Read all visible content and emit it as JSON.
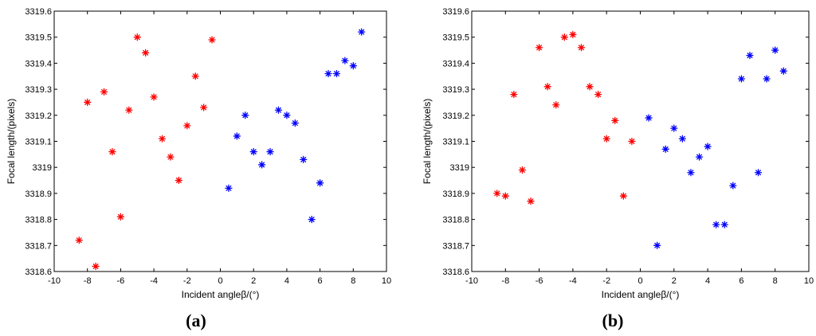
{
  "chart_data": [
    {
      "type": "scatter",
      "panel_label": "(a)",
      "panel_paren_open": "(",
      "panel_letter": "a",
      "panel_paren_close": ")",
      "xlabel": "Incident angleβ/(°)",
      "ylabel": "Focal length/(pixels)",
      "xlim": [
        -10,
        10
      ],
      "ylim": [
        3318.6,
        3319.6
      ],
      "xticks": [
        "-10",
        "-8",
        "-6",
        "-4",
        "-2",
        "0",
        "2",
        "4",
        "6",
        "8",
        "10"
      ],
      "yticks": [
        "3319.6",
        "3319.5",
        "3319.4",
        "3319.3",
        "3319.2",
        "3319.1",
        "3319",
        "3318.9",
        "3318.8",
        "3318.7",
        "3318.6"
      ],
      "marker": "*",
      "grid": false,
      "series": [
        {
          "color": "#ff0000",
          "points": [
            [
              -8.5,
              3318.72
            ],
            [
              -8,
              3319.25
            ],
            [
              -7.5,
              3318.62
            ],
            [
              -7,
              3319.29
            ],
            [
              -6.5,
              3319.06
            ],
            [
              -6,
              3318.81
            ],
            [
              -5.5,
              3319.22
            ],
            [
              -5,
              3319.5
            ],
            [
              -4.5,
              3319.44
            ],
            [
              -4,
              3319.27
            ],
            [
              -3.5,
              3319.11
            ],
            [
              -3,
              3319.04
            ],
            [
              -2.5,
              3318.95
            ],
            [
              -2,
              3319.16
            ],
            [
              -1.5,
              3319.35
            ],
            [
              -1,
              3319.23
            ],
            [
              -0.5,
              3319.49
            ]
          ]
        },
        {
          "color": "#0000ff",
          "points": [
            [
              0.5,
              3318.92
            ],
            [
              1,
              3319.12
            ],
            [
              1.5,
              3319.2
            ],
            [
              2,
              3319.06
            ],
            [
              2.5,
              3319.01
            ],
            [
              3,
              3319.06
            ],
            [
              3.5,
              3319.22
            ],
            [
              4,
              3319.2
            ],
            [
              4.5,
              3319.17
            ],
            [
              5,
              3319.03
            ],
            [
              5.5,
              3318.8
            ],
            [
              6,
              3318.94
            ],
            [
              6.5,
              3319.36
            ],
            [
              7,
              3319.36
            ],
            [
              7.5,
              3319.41
            ],
            [
              8,
              3319.39
            ],
            [
              8.5,
              3319.52
            ]
          ]
        }
      ]
    },
    {
      "type": "scatter",
      "panel_label": "(b)",
      "panel_paren_open": "(",
      "panel_letter": "b",
      "panel_paren_close": ")",
      "xlabel": "Incident angleβ/(°)",
      "ylabel": "Focal length/(pixels)",
      "xlim": [
        -10,
        10
      ],
      "ylim": [
        3318.6,
        3319.6
      ],
      "xticks": [
        "-10",
        "-8",
        "-6",
        "-4",
        "-2",
        "0",
        "2",
        "4",
        "6",
        "8",
        "10"
      ],
      "yticks": [
        "3319.6",
        "3319.5",
        "3319.4",
        "3319.3",
        "3319.2",
        "3319.1",
        "3319",
        "3318.9",
        "3318.8",
        "3318.7",
        "3318.6"
      ],
      "marker": "*",
      "grid": false,
      "series": [
        {
          "color": "#ff0000",
          "points": [
            [
              -8.5,
              3318.9
            ],
            [
              -8,
              3318.89
            ],
            [
              -7.5,
              3319.28
            ],
            [
              -7,
              3318.99
            ],
            [
              -6.5,
              3318.87
            ],
            [
              -6,
              3319.46
            ],
            [
              -5.5,
              3319.31
            ],
            [
              -5,
              3319.24
            ],
            [
              -4.5,
              3319.5
            ],
            [
              -4,
              3319.51
            ],
            [
              -3.5,
              3319.46
            ],
            [
              -3,
              3319.31
            ],
            [
              -2.5,
              3319.28
            ],
            [
              -2,
              3319.11
            ],
            [
              -1.5,
              3319.18
            ],
            [
              -1,
              3318.89
            ],
            [
              -0.5,
              3319.1
            ]
          ]
        },
        {
          "color": "#0000ff",
          "points": [
            [
              0.5,
              3319.19
            ],
            [
              1,
              3318.7
            ],
            [
              1.5,
              3319.07
            ],
            [
              2,
              3319.15
            ],
            [
              2.5,
              3319.11
            ],
            [
              3,
              3318.98
            ],
            [
              3.5,
              3319.04
            ],
            [
              4,
              3319.08
            ],
            [
              4.5,
              3318.78
            ],
            [
              5,
              3318.78
            ],
            [
              5.5,
              3318.93
            ],
            [
              6,
              3319.34
            ],
            [
              6.5,
              3319.43
            ],
            [
              7,
              3318.98
            ],
            [
              7.5,
              3319.34
            ],
            [
              8,
              3319.45
            ],
            [
              8.5,
              3319.37
            ]
          ]
        }
      ]
    }
  ]
}
